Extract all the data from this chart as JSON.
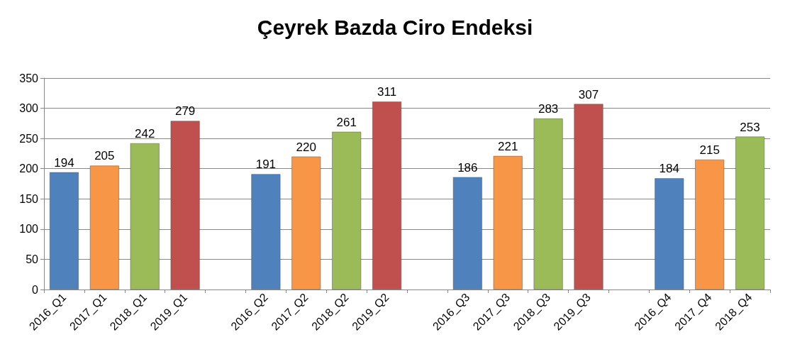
{
  "chart_data": {
    "type": "bar",
    "title": "Çeyrek Bazda Ciro Endeksi",
    "categories": [
      "2016_Q1",
      "2017_Q1",
      "2018_Q1",
      "2019_Q1",
      null,
      "2016_Q2",
      "2017_Q2",
      "2018_Q2",
      "2019_Q2",
      null,
      "2016_Q3",
      "2017_Q3",
      "2018_Q3",
      "2019_Q3",
      null,
      "2016_Q4",
      "2017_Q4",
      "2018_Q4"
    ],
    "values": [
      194,
      205,
      242,
      279,
      null,
      191,
      220,
      261,
      311,
      null,
      186,
      221,
      283,
      307,
      null,
      184,
      215,
      253
    ],
    "colors": [
      "#4f81bd",
      "#f79646",
      "#9bbb59",
      "#c0504d",
      null,
      "#4f81bd",
      "#f79646",
      "#9bbb59",
      "#c0504d",
      null,
      "#4f81bd",
      "#f79646",
      "#9bbb59",
      "#c0504d",
      null,
      "#4f81bd",
      "#f79646",
      "#9bbb59"
    ],
    "ylim": [
      0,
      350
    ],
    "yticks": [
      0,
      50,
      100,
      150,
      200,
      250,
      300,
      350
    ],
    "grid": "y",
    "data_labels": true
  }
}
